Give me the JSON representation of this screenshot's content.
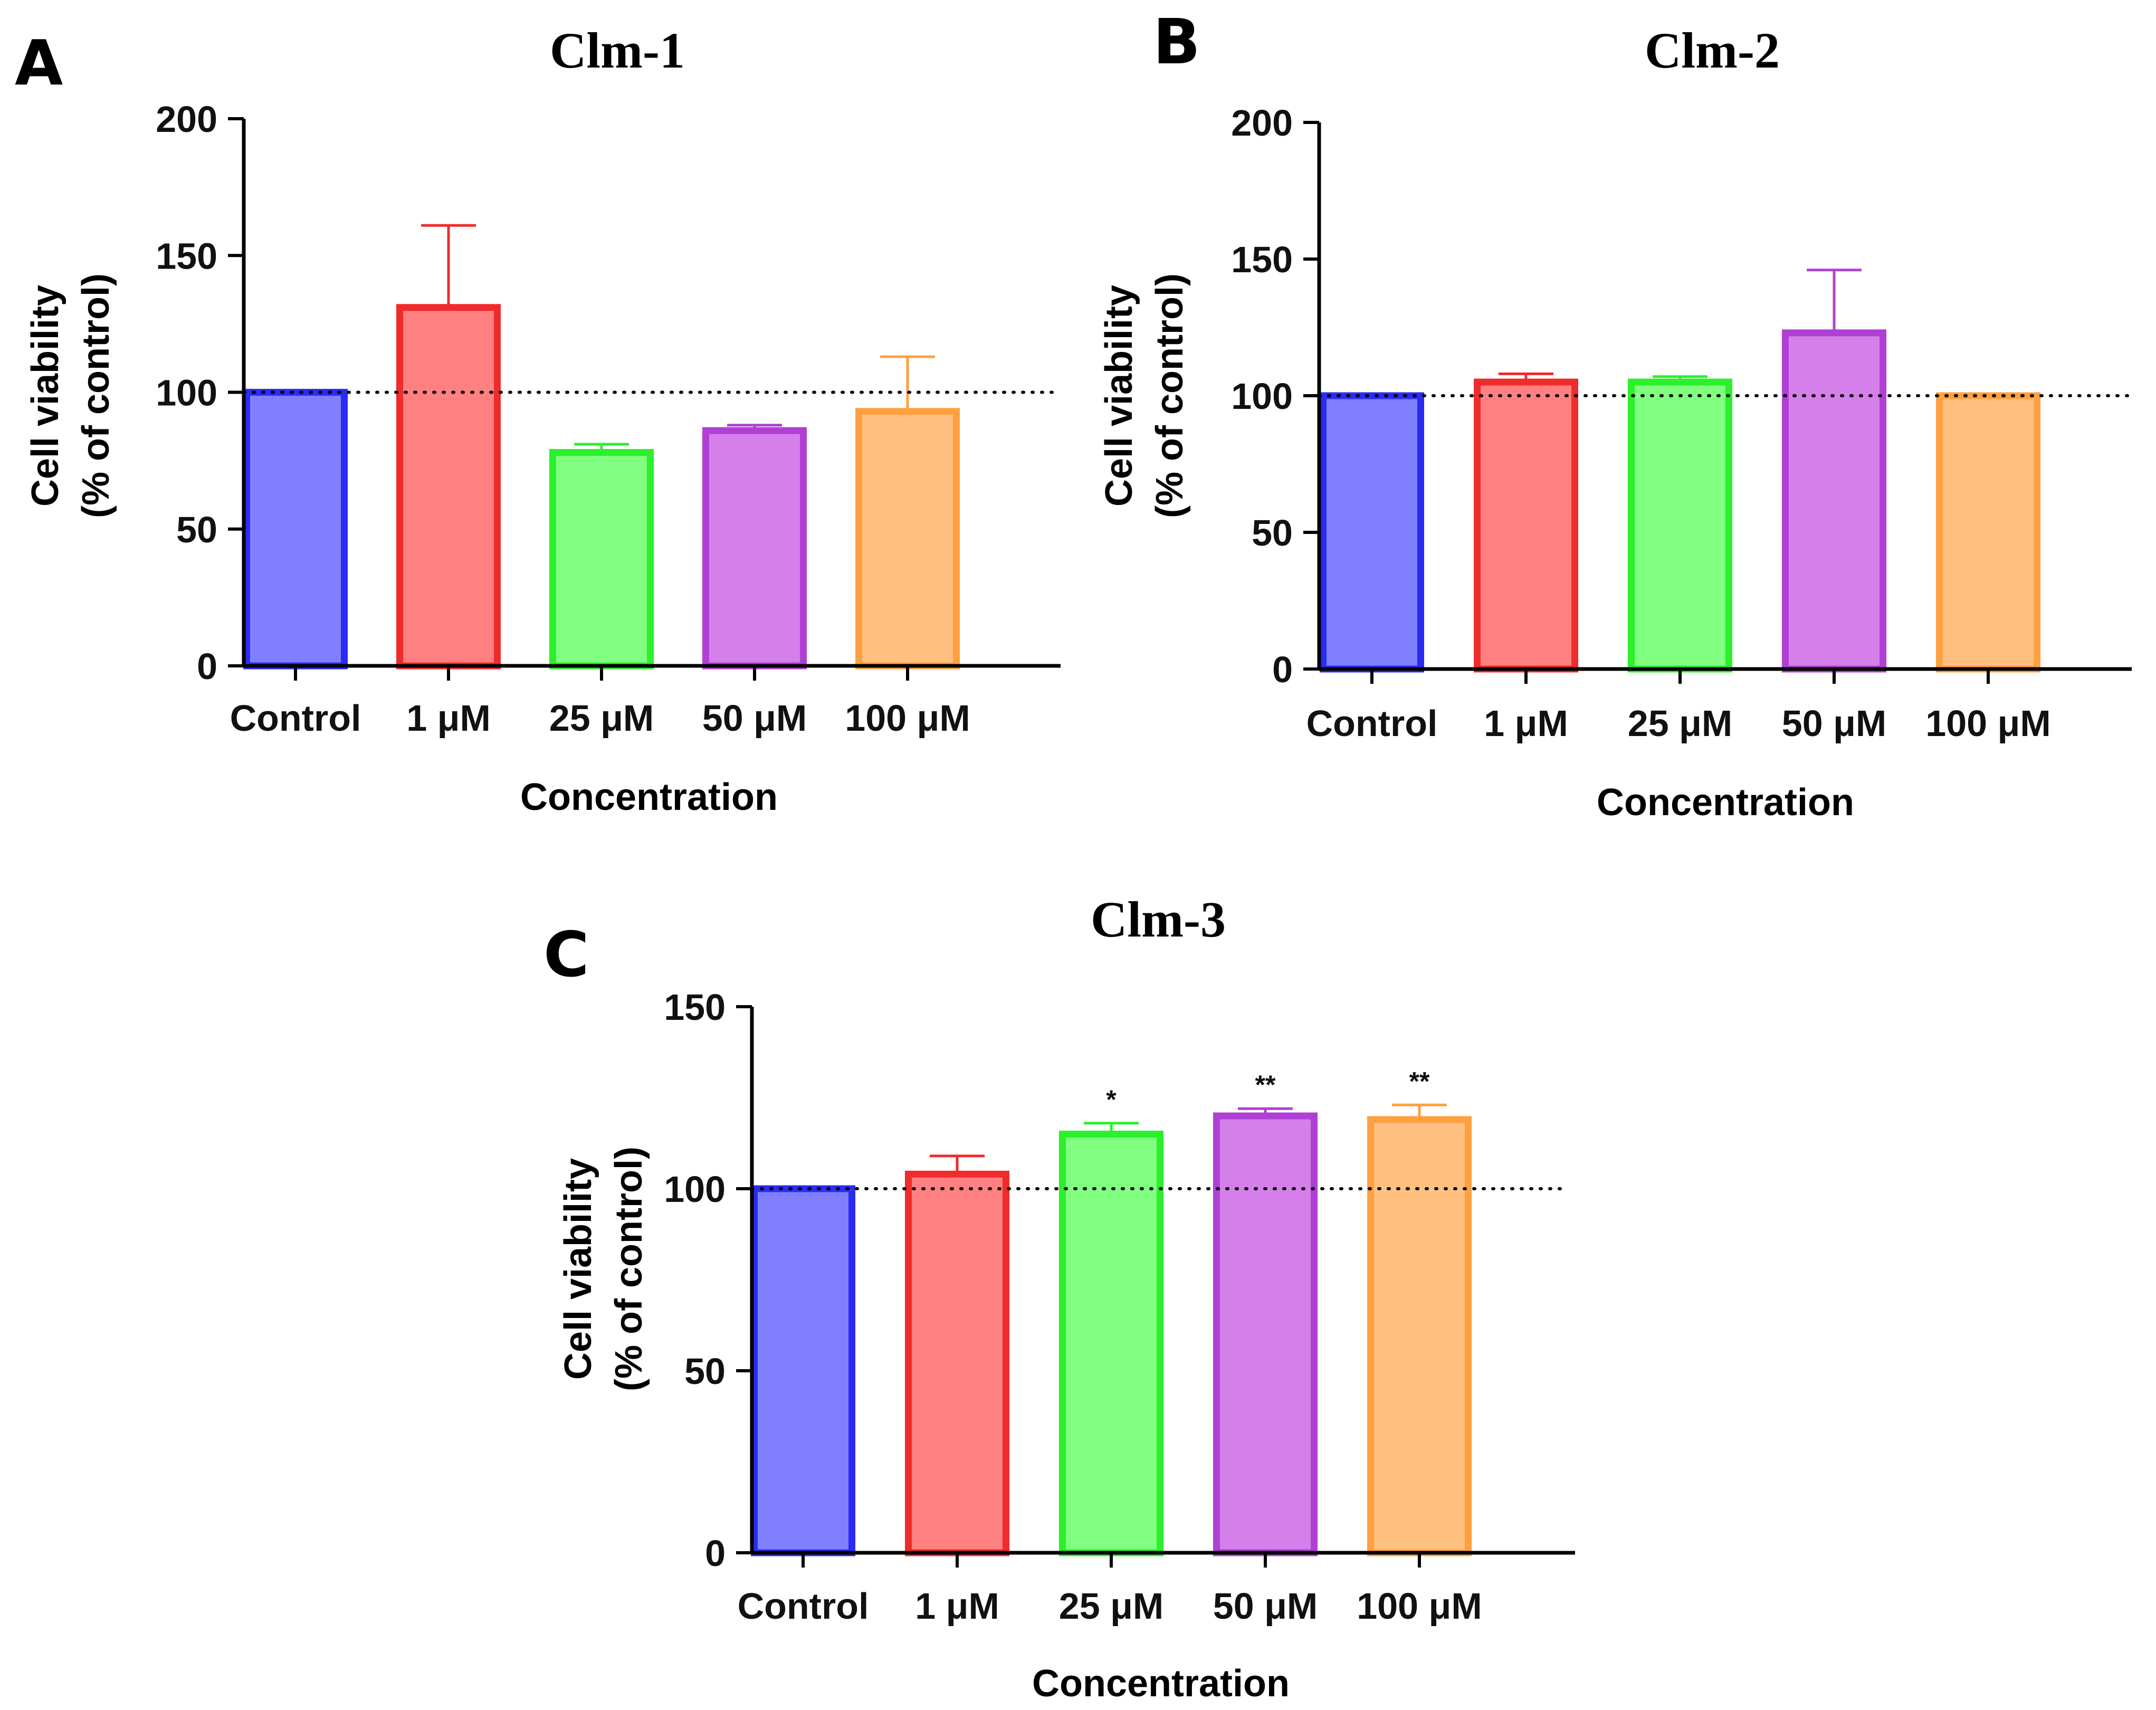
{
  "chart_data": [
    {
      "type": "bar",
      "panel": "A",
      "title": "Clm-1",
      "xlabel": "Concentration",
      "ylabel_line1": "Cell viability",
      "ylabel_line2": "(% of control)",
      "ylim": [
        0,
        200
      ],
      "yticks": [
        "0",
        "50",
        "100",
        "150",
        "200"
      ],
      "reference_line": 100,
      "categories": [
        "Control",
        "1 μM",
        "25 μM",
        "50 μM",
        "100 μM"
      ],
      "values": [
        100,
        131,
        78,
        86,
        93
      ],
      "error": [
        0,
        30,
        3,
        2,
        20
      ],
      "significance": [
        "",
        "",
        "",
        "",
        ""
      ],
      "colors": {
        "fills": [
          "#8080FF",
          "#FF8080",
          "#80FF80",
          "#D580EA",
          "#FFC080"
        ],
        "strokes": [
          "#2B2BF5",
          "#F02B2B",
          "#2BF02B",
          "#B040D5",
          "#FFA040"
        ]
      }
    },
    {
      "type": "bar",
      "panel": "B",
      "title": "Clm-2",
      "xlabel": "Concentration",
      "ylabel_line1": "Cell viability",
      "ylabel_line2": "(% of control)",
      "ylim": [
        0,
        200
      ],
      "yticks": [
        "0",
        "50",
        "100",
        "150",
        "200"
      ],
      "reference_line": 100,
      "categories": [
        "Control",
        "1 μM",
        "25 μM",
        "50 μM",
        "100 μM"
      ],
      "values": [
        100,
        105,
        105,
        123,
        100
      ],
      "error": [
        0,
        3,
        2,
        23,
        0
      ],
      "significance": [
        "",
        "",
        "",
        "",
        ""
      ],
      "colors": {
        "fills": [
          "#8080FF",
          "#FF8080",
          "#80FF80",
          "#D580EA",
          "#FFC080"
        ],
        "strokes": [
          "#2B2BF5",
          "#F02B2B",
          "#2BF02B",
          "#B040D5",
          "#FFA040"
        ]
      }
    },
    {
      "type": "bar",
      "panel": "C",
      "title": "Clm-3",
      "xlabel": "Concentration",
      "ylabel_line1": "Cell viability",
      "ylabel_line2": "(% of control)",
      "ylim": [
        0,
        150
      ],
      "yticks": [
        "0",
        "50",
        "100",
        "150"
      ],
      "reference_line": 100,
      "categories": [
        "Control",
        "1 μM",
        "25 μM",
        "50 μM",
        "100 μM"
      ],
      "values": [
        100,
        104,
        115,
        120,
        119
      ],
      "error": [
        0,
        5,
        3,
        2,
        4
      ],
      "significance": [
        "",
        "",
        "*",
        "**",
        "**"
      ],
      "colors": {
        "fills": [
          "#8080FF",
          "#FF8080",
          "#80FF80",
          "#D580EA",
          "#FFC080"
        ],
        "strokes": [
          "#2B2BF5",
          "#F02B2B",
          "#2BF02B",
          "#B040D5",
          "#FFA040"
        ]
      }
    }
  ]
}
